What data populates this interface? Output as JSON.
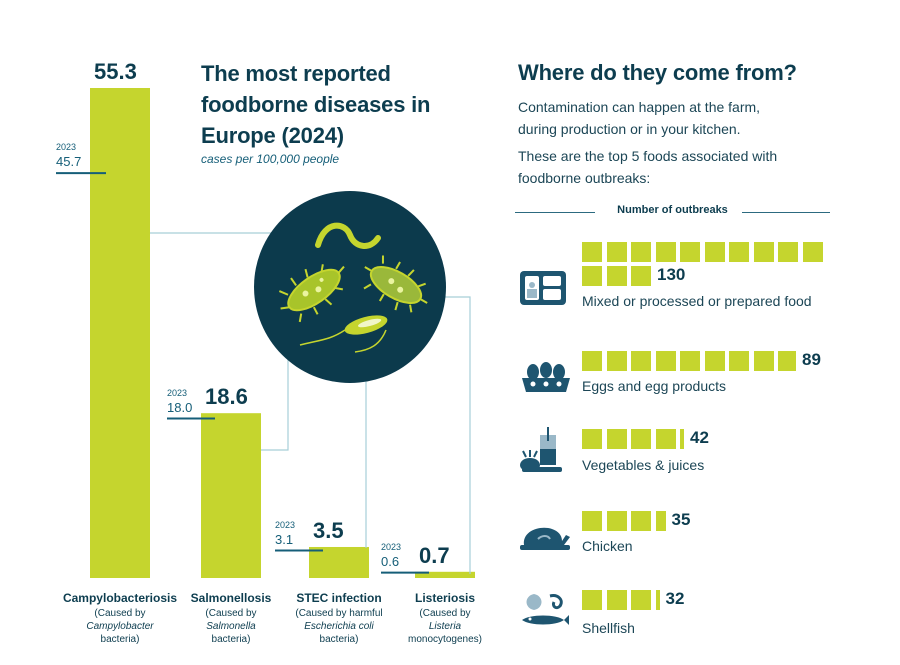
{
  "chart_data": [
    {
      "type": "bar",
      "title": "The most reported foodborne diseases in Europe (2024)",
      "subtitle": "cases per 100,000 people",
      "categories": [
        "Campylobacteriosis",
        "Salmonellosis",
        "STEC infection",
        "Listeriosis"
      ],
      "descriptions": [
        {
          "pre": "(Caused by",
          "italic": "Campylobacter",
          "post": "bacteria)"
        },
        {
          "pre": "(Caused by",
          "italic": "Salmonella",
          "post": "bacteria)"
        },
        {
          "pre": "(Caused by harmful",
          "italic": "Escherichia coli",
          "post": "bacteria)"
        },
        {
          "pre": "(Caused by",
          "italic": "Listeria",
          "post": "monocytogenes)"
        }
      ],
      "series": [
        {
          "name": "2024",
          "values": [
            55.3,
            18.6,
            3.5,
            0.7
          ],
          "labels": [
            "55.3",
            "18.6",
            "3.5",
            "0.7"
          ]
        },
        {
          "name": "2023",
          "values": [
            45.7,
            18.0,
            3.1,
            0.6
          ],
          "labels": [
            "45.7",
            "18.0",
            "3.1",
            "0.6"
          ]
        }
      ],
      "prev_year_label": "2023",
      "ylim": [
        0,
        55.3
      ],
      "colors": {
        "bar": "#c5d52e",
        "marker": "#155e78",
        "text": "#0d3d4f"
      }
    },
    {
      "type": "bar",
      "title": "Where do they come from?",
      "intro": [
        "Contamination can happen at the farm,",
        "during production or in your kitchen.",
        "These are the top 5 foods associated with",
        "foodborne outbreaks:"
      ],
      "header": "Number of outbreaks",
      "categories": [
        "Mixed or processed or prepared food",
        "Eggs and egg products",
        "Vegetables & juices",
        "Chicken",
        "Shellfish"
      ],
      "icons": [
        "prepared-food-icon",
        "eggs-icon",
        "vegetables-juice-icon",
        "chicken-icon",
        "shellfish-icon"
      ],
      "values": [
        130,
        89,
        42,
        35,
        32
      ],
      "squares": [
        13,
        8.9,
        4.2,
        3.5,
        3.2
      ],
      "unit_per_square": 10,
      "colors": {
        "square": "#c5d52e",
        "icon": "#1e5570"
      }
    }
  ]
}
